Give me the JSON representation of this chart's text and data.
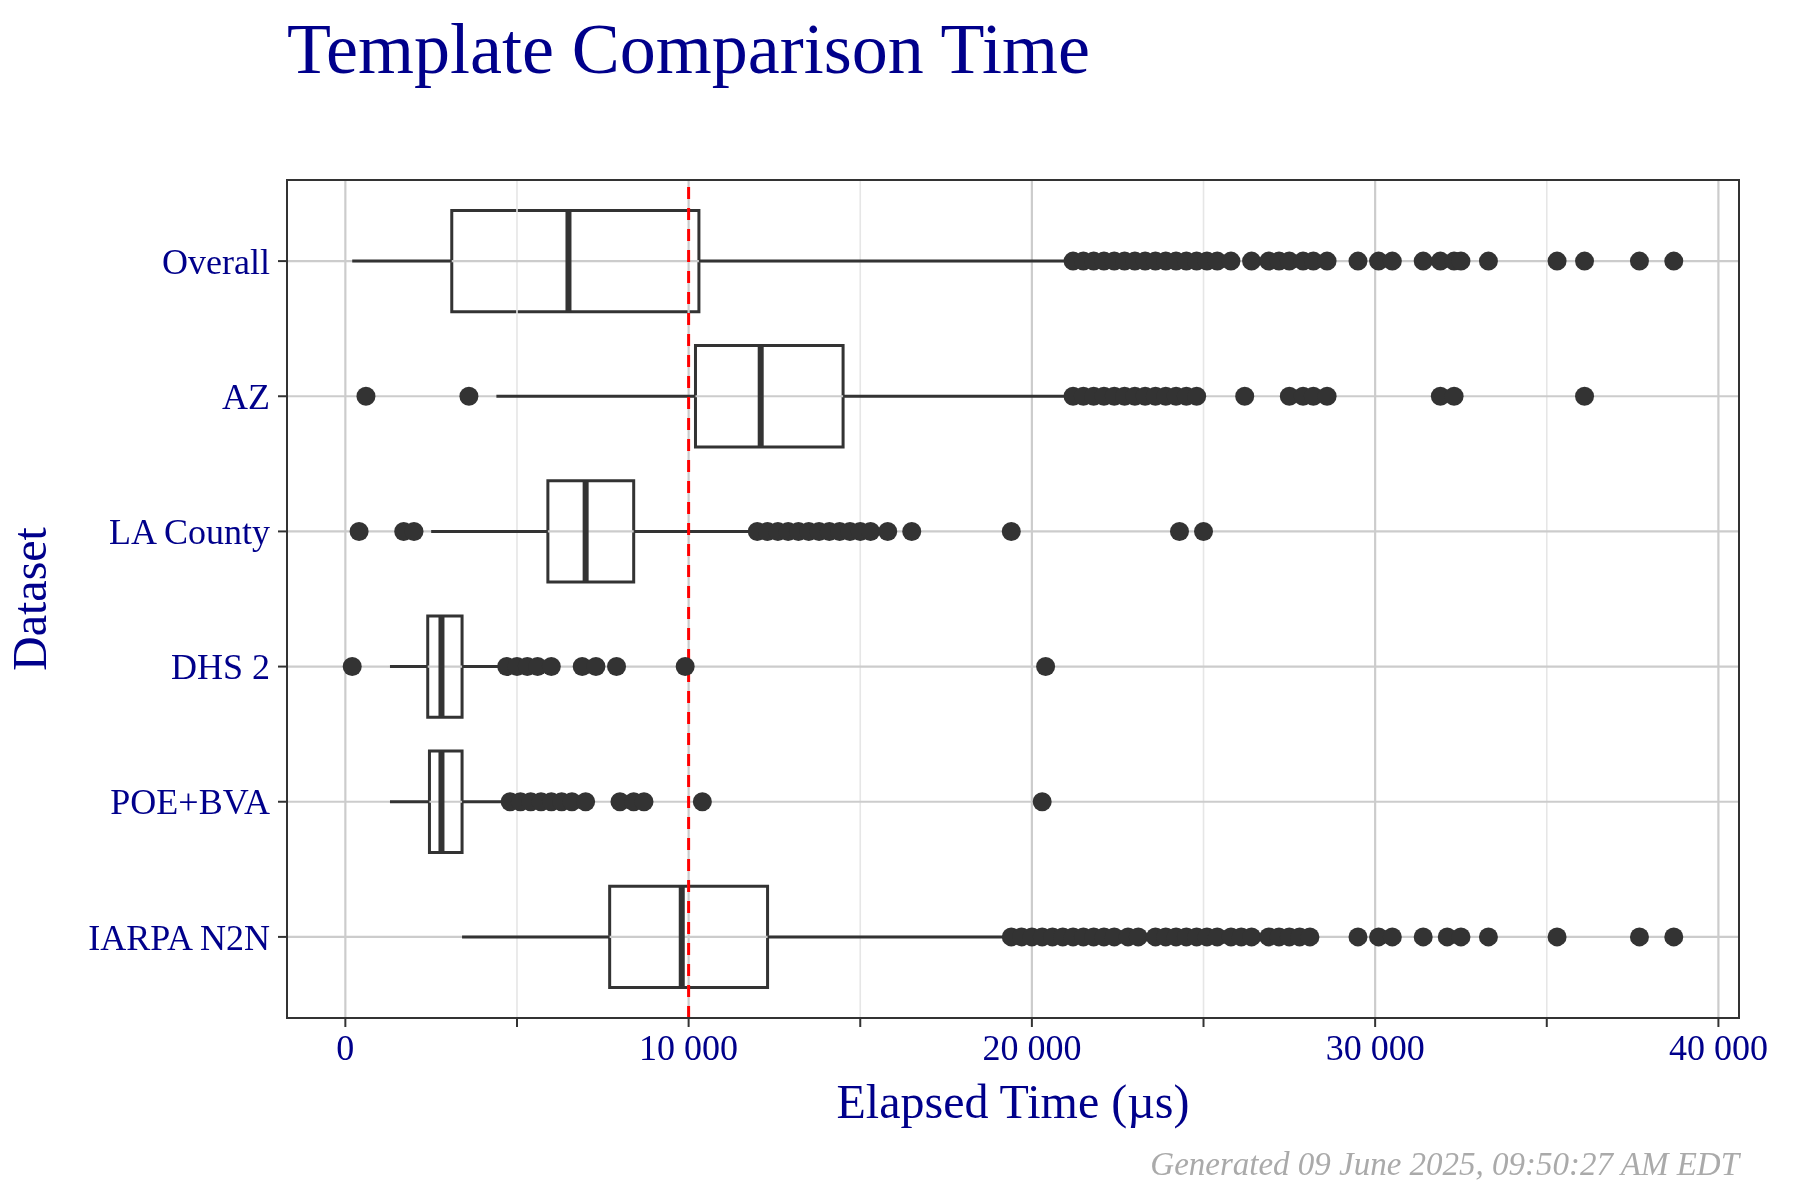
{
  "chart_data": {
    "type": "box",
    "title": "Template Comparison Time",
    "xlabel": "Elapsed Time (µs)",
    "ylabel": "Dataset",
    "orientation": "horizontal",
    "categories": [
      "Overall",
      "AZ",
      "LA County",
      "DHS 2",
      "POE+BVA",
      "IARPA N2N"
    ],
    "color": "#333333",
    "boxes": [
      {
        "low": 200,
        "q1": 3100,
        "median": 6500,
        "q3": 10300,
        "high": 21100,
        "outliers": [
          21200,
          21500,
          21800,
          22100,
          22400,
          22700,
          23000,
          23300,
          23600,
          23900,
          24200,
          24500,
          24800,
          25100,
          25400,
          25800,
          26400,
          26900,
          27200,
          27500,
          27900,
          28200,
          28600,
          29500,
          30100,
          30500,
          31400,
          31900,
          32300,
          32500,
          33300,
          35300,
          36100,
          37700,
          38700
        ]
      },
      {
        "low": 4400,
        "q1": 10200,
        "median": 12100,
        "q3": 14500,
        "high": 21000,
        "outliers": [
          600,
          3600,
          21200,
          21500,
          21800,
          22100,
          22400,
          22700,
          23000,
          23300,
          23600,
          23900,
          24200,
          24500,
          24800,
          26200,
          27500,
          27900,
          28200,
          28600,
          31900,
          32300,
          36100
        ]
      },
      {
        "low": 2500,
        "q1": 5900,
        "median": 7000,
        "q3": 8400,
        "high": 11800,
        "outliers": [
          400,
          1700,
          2000,
          12000,
          12300,
          12600,
          12900,
          13200,
          13500,
          13800,
          14100,
          14400,
          14700,
          15000,
          15300,
          15800,
          16500,
          19400,
          24300,
          25000
        ]
      },
      {
        "low": 1300,
        "q1": 2400,
        "median": 2800,
        "q3": 3400,
        "high": 4500,
        "outliers": [
          200,
          4700,
          5000,
          5300,
          5600,
          6000,
          6900,
          7300,
          7900,
          9900,
          20400
        ]
      },
      {
        "low": 1300,
        "q1": 2450,
        "median": 2800,
        "q3": 3400,
        "high": 4600,
        "outliers": [
          4800,
          5100,
          5400,
          5700,
          6000,
          6300,
          6600,
          7000,
          8000,
          8400,
          8700,
          10400,
          20300
        ]
      },
      {
        "low": 3400,
        "q1": 7700,
        "median": 9800,
        "q3": 12300,
        "high": 19300,
        "outliers": [
          19400,
          19700,
          20000,
          20300,
          20600,
          20900,
          21200,
          21500,
          21800,
          22100,
          22400,
          22800,
          23100,
          23600,
          23900,
          24200,
          24500,
          24800,
          25100,
          25400,
          25800,
          26100,
          26400,
          26900,
          27200,
          27500,
          27800,
          28100,
          29500,
          30100,
          30500,
          31400,
          32100,
          32500,
          33300,
          35300,
          37700,
          38700
        ]
      }
    ],
    "xlim": [
      -1700,
      40600
    ],
    "xticks": [
      0,
      {
        "value": 5000,
        "label": null
      },
      {
        "value": 10000,
        "label": "10 000"
      },
      {
        "value": 15000,
        "label": null
      },
      {
        "value": 20000,
        "label": "20 000"
      },
      {
        "value": 25000,
        "label": null
      },
      {
        "value": 30000,
        "label": "30 000"
      },
      {
        "value": 35000,
        "label": null
      },
      {
        "value": 40000,
        "label": "40 000"
      }
    ],
    "grid": true,
    "ref_lines": [
      {
        "axis": "x",
        "value": 10000,
        "color": "#ff0000",
        "line_style": "dashed"
      }
    ],
    "annotations": [
      "Generated 09 June 2025, 09:50:27 AM EDT"
    ]
  }
}
